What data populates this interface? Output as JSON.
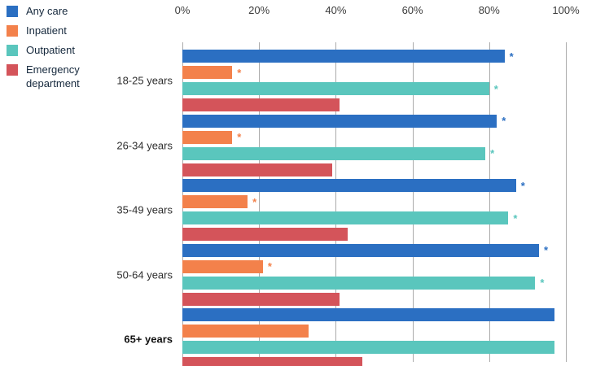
{
  "chart_data": {
    "type": "bar",
    "orientation": "horizontal",
    "title": "",
    "xlabel": "",
    "ylabel": "",
    "xlim": [
      0,
      100
    ],
    "x_ticks": [
      "0%",
      "20%",
      "40%",
      "60%",
      "80%",
      "100%"
    ],
    "grid": true,
    "legend_position": "top-left",
    "significance_marker": "*",
    "categories": [
      "18-25 years",
      "26-34 years",
      "35-49 years",
      "50-64 years",
      "65+ years"
    ],
    "emphasized_category": "65+ years",
    "series": [
      {
        "name": "Any care",
        "color": "#2b6fc2",
        "values": [
          84,
          82,
          87,
          93,
          97
        ],
        "significant": [
          true,
          true,
          true,
          true,
          false
        ]
      },
      {
        "name": "Inpatient",
        "color": "#f3814b",
        "values": [
          13,
          13,
          17,
          21,
          33
        ],
        "significant": [
          true,
          true,
          true,
          true,
          false
        ]
      },
      {
        "name": "Outpatient",
        "color": "#5ac6bd",
        "values": [
          80,
          79,
          85,
          92,
          97
        ],
        "significant": [
          true,
          true,
          true,
          true,
          false
        ]
      },
      {
        "name": "Emergency department",
        "color": "#d4545a",
        "values": [
          41,
          39,
          43,
          41,
          47
        ],
        "significant": [
          false,
          false,
          false,
          false,
          false
        ]
      }
    ]
  }
}
